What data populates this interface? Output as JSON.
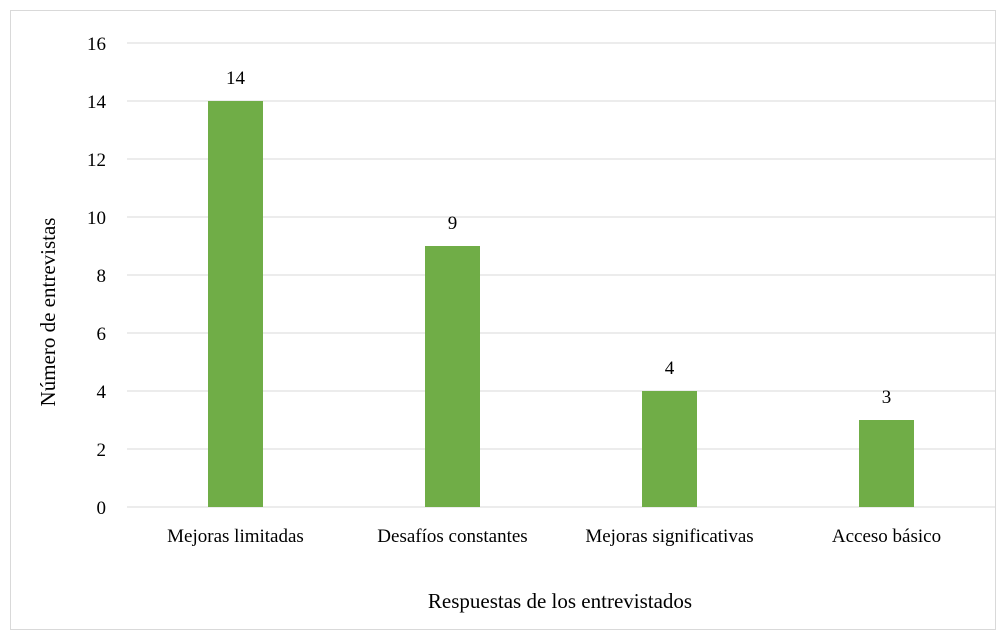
{
  "chart_data": {
    "type": "bar",
    "title": "",
    "xlabel": "Respuestas de los entrevistados",
    "ylabel": "Número de entrevistas",
    "categories": [
      "Mejoras limitadas",
      "Desafíos constantes",
      "Mejoras significativas",
      "Acceso básico"
    ],
    "values": [
      14,
      9,
      4,
      3
    ],
    "data_labels": [
      "14",
      "9",
      "4",
      "3"
    ],
    "y_ticks": [
      "0",
      "2",
      "4",
      "6",
      "8",
      "10",
      "12",
      "14",
      "16"
    ],
    "ylim": [
      0,
      16
    ],
    "grid": "horizontal",
    "legend": "none",
    "bar_color": "#70ad47",
    "grid_color": "#d9d9d9"
  }
}
